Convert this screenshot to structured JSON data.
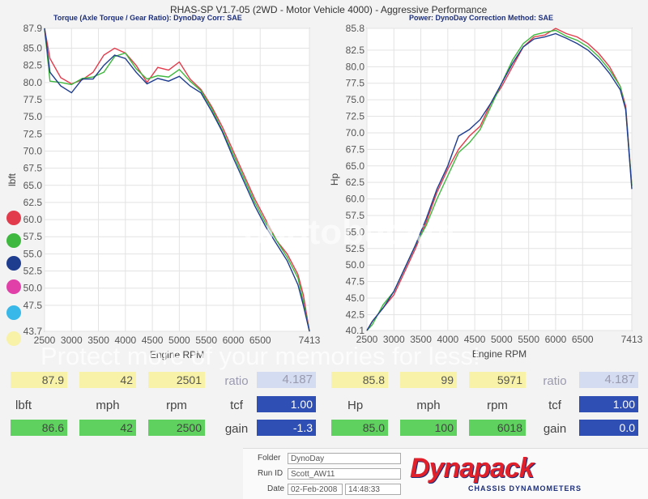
{
  "header": {
    "title": "RHAS-SP V1.7-05   (2WD - Motor Vehicle 4000) - Aggressive Performance",
    "left_subtitle": "Torque (Axle Torque / Gear Ratio): DynoDay      Corr: SAE",
    "right_subtitle": "Power: DynoDay      Correction Method: SAE"
  },
  "colors": {
    "red": "#e23c4c",
    "green": "#3fb83f",
    "navy": "#1f3d8f",
    "magenta": "#e040a8",
    "cyan": "#38b8e8",
    "yellow": "#f8f2a8"
  },
  "legend_dots": [
    "red",
    "green",
    "navy",
    "magenta",
    "cyan",
    "yellow"
  ],
  "chart_data": [
    {
      "type": "line",
      "xlabel": "Engine RPM",
      "ylabel": "lbft",
      "xlim": [
        2500,
        7413
      ],
      "ylim": [
        43.7,
        87.9
      ],
      "x_ticks": [
        "2500",
        "3000",
        "3500",
        "4000",
        "4500",
        "5000",
        "5500",
        "6000",
        "6500",
        "7413"
      ],
      "y_ticks": [
        "87.9",
        "85.0",
        "82.5",
        "80.0",
        "77.5",
        "75.0",
        "72.5",
        "70.0",
        "67.5",
        "65.0",
        "62.5",
        "60.0",
        "57.5",
        "55.0",
        "52.5",
        "50.0",
        "47.5",
        "43.7"
      ],
      "series": [
        {
          "color": "#e23c4c",
          "x": [
            2500,
            2600,
            2800,
            3000,
            3200,
            3400,
            3600,
            3800,
            4000,
            4200,
            4400,
            4600,
            4800,
            5000,
            5200,
            5400,
            5600,
            5800,
            6000,
            6200,
            6400,
            6600,
            6800,
            7000,
            7200,
            7300,
            7413
          ],
          "y": [
            87.9,
            83.5,
            80.7,
            79.8,
            80.4,
            81.5,
            84.0,
            85.0,
            84.3,
            82.5,
            80.0,
            82.2,
            81.8,
            83.0,
            80.5,
            79.0,
            76.5,
            73.5,
            70.0,
            66.5,
            63.0,
            60.0,
            57.0,
            55.0,
            52.0,
            49.0,
            43.7
          ]
        },
        {
          "color": "#3fb83f",
          "x": [
            2500,
            2600,
            2800,
            3000,
            3200,
            3400,
            3600,
            3800,
            4000,
            4200,
            4400,
            4600,
            4800,
            5000,
            5200,
            5400,
            5600,
            5800,
            6000,
            6200,
            6400,
            6600,
            6800,
            7000,
            7200,
            7300,
            7413
          ],
          "y": [
            87.9,
            80.2,
            80.0,
            79.7,
            80.6,
            80.8,
            81.5,
            83.8,
            84.3,
            82.0,
            80.5,
            81.0,
            80.8,
            81.9,
            80.2,
            78.8,
            76.2,
            73.0,
            69.5,
            66.0,
            62.5,
            59.5,
            57.0,
            54.5,
            51.5,
            48.0,
            43.7
          ]
        },
        {
          "color": "#1f3d8f",
          "x": [
            2500,
            2600,
            2800,
            3000,
            3200,
            3400,
            3600,
            3800,
            4000,
            4200,
            4400,
            4600,
            4800,
            5000,
            5200,
            5400,
            5600,
            5800,
            6000,
            6200,
            6400,
            6600,
            6800,
            7000,
            7200,
            7300,
            7413
          ],
          "y": [
            87.9,
            81.5,
            79.5,
            78.5,
            80.5,
            80.5,
            82.5,
            84.0,
            83.5,
            81.5,
            79.8,
            80.6,
            80.2,
            80.9,
            79.5,
            78.5,
            75.8,
            72.8,
            69.0,
            65.5,
            62.0,
            59.0,
            56.5,
            54.0,
            50.5,
            47.5,
            43.7
          ]
        }
      ]
    },
    {
      "type": "line",
      "xlabel": "Engine RPM",
      "ylabel": "Hp",
      "xlim": [
        2500,
        7413
      ],
      "ylim": [
        40.1,
        85.8
      ],
      "x_ticks": [
        "2500",
        "3000",
        "3500",
        "4000",
        "4500",
        "5000",
        "5500",
        "6000",
        "6500",
        "7413"
      ],
      "y_ticks": [
        "85.8",
        "82.5",
        "80.0",
        "77.5",
        "75.0",
        "72.5",
        "70.0",
        "67.5",
        "65.0",
        "62.5",
        "60.0",
        "57.5",
        "55.0",
        "52.5",
        "50.0",
        "47.5",
        "45.0",
        "42.5",
        "40.1"
      ],
      "series": [
        {
          "color": "#e23c4c",
          "x": [
            2500,
            2600,
            2800,
            3000,
            3200,
            3400,
            3600,
            3800,
            4000,
            4200,
            4400,
            4600,
            4800,
            5000,
            5200,
            5400,
            5600,
            5800,
            6000,
            6200,
            6400,
            6600,
            6800,
            7000,
            7200,
            7300,
            7413
          ],
          "y": [
            40.1,
            41.5,
            43.5,
            45.5,
            49.0,
            52.5,
            56.5,
            61.0,
            64.5,
            67.5,
            69.5,
            71.0,
            74.5,
            77.0,
            80.0,
            83.0,
            84.5,
            84.8,
            85.8,
            85.0,
            84.5,
            83.5,
            82.0,
            80.0,
            77.0,
            74.0,
            62.0
          ]
        },
        {
          "color": "#3fb83f",
          "x": [
            2500,
            2600,
            2800,
            3000,
            3200,
            3400,
            3600,
            3800,
            4000,
            4200,
            4400,
            4600,
            4800,
            5000,
            5200,
            5400,
            5600,
            5800,
            6000,
            6200,
            6400,
            6600,
            6800,
            7000,
            7200,
            7300,
            7413
          ],
          "y": [
            40.1,
            41.0,
            44.0,
            46.0,
            49.5,
            53.0,
            56.0,
            60.0,
            63.5,
            67.0,
            68.5,
            70.5,
            74.0,
            77.5,
            81.0,
            83.5,
            84.8,
            85.2,
            85.5,
            84.6,
            84.0,
            83.0,
            81.5,
            79.5,
            77.0,
            73.5,
            62.0
          ]
        },
        {
          "color": "#1f3d8f",
          "x": [
            2500,
            2600,
            2800,
            3000,
            3200,
            3400,
            3600,
            3800,
            4000,
            4200,
            4400,
            4600,
            4800,
            5000,
            5200,
            5400,
            5600,
            5800,
            6000,
            6200,
            6400,
            6600,
            6800,
            7000,
            7200,
            7300,
            7413
          ],
          "y": [
            40.1,
            41.5,
            43.5,
            46.0,
            49.5,
            53.0,
            57.0,
            61.5,
            65.0,
            69.5,
            70.5,
            72.0,
            74.5,
            77.5,
            80.5,
            83.0,
            84.2,
            84.5,
            85.0,
            84.3,
            83.5,
            82.5,
            81.0,
            79.0,
            76.5,
            73.5,
            61.5
          ]
        }
      ]
    }
  ],
  "left_panel": {
    "row1": {
      "v1": "87.9",
      "v2": "42",
      "v3": "2501",
      "label": "ratio",
      "value": "4.187"
    },
    "row2": {
      "u1": "lbft",
      "u2": "mph",
      "u3": "rpm",
      "label": "tcf",
      "value": "1.00"
    },
    "row3": {
      "v1": "86.6",
      "v2": "42",
      "v3": "2500",
      "label": "gain",
      "value": "-1.3"
    }
  },
  "right_panel": {
    "row1": {
      "v1": "85.8",
      "v2": "99",
      "v3": "5971",
      "label": "ratio",
      "value": "4.187"
    },
    "row2": {
      "u1": "Hp",
      "u2": "mph",
      "u3": "rpm",
      "label": "tcf",
      "value": "1.00"
    },
    "row3": {
      "v1": "85.0",
      "v2": "100",
      "v3": "6018",
      "label": "gain",
      "value": "0.0"
    }
  },
  "info": {
    "folder_label": "Folder",
    "folder_value": "DynoDay",
    "run_label": "Run ID",
    "run_value": "Scott_AW11",
    "date_label": "Date",
    "date_value": "02-Feb-2008",
    "time_value": "14:48:33"
  },
  "brand": {
    "name": "Dynapack",
    "tagline": "CHASSIS DYNAMOMETERS"
  },
  "watermark": {
    "logo_text": "photobucket",
    "line": "Protect more of your memories for less!"
  }
}
